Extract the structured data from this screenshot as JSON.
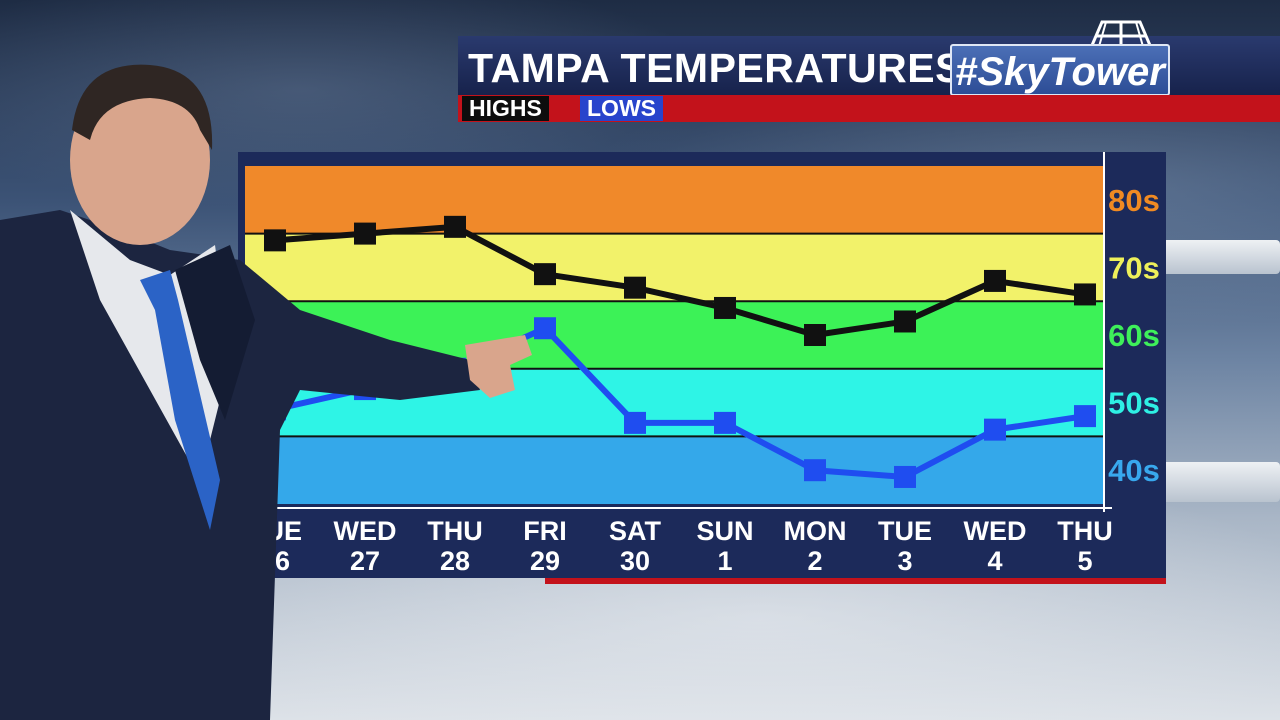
{
  "header": {
    "title": "TAMPA TEMPERATURES",
    "brand": "#SkyTower",
    "legend_highs": "HIGHS",
    "legend_lows": "LOWS"
  },
  "colors": {
    "highs": "#111111",
    "lows": "#1f4df0",
    "band_80s": "#f0892a",
    "band_70s": "#f2f26a",
    "band_60s": "#3cf257",
    "band_50s": "#2ef4e6",
    "band_40s": "#34a8ea",
    "accent_red": "#c3121b",
    "panel_navy": "#1c2a5a"
  },
  "chart_data": {
    "type": "line",
    "title": "TAMPA TEMPERATURES",
    "x": [
      {
        "day": "TUE",
        "date": "26"
      },
      {
        "day": "WED",
        "date": "27"
      },
      {
        "day": "THU",
        "date": "28"
      },
      {
        "day": "FRI",
        "date": "29"
      },
      {
        "day": "SAT",
        "date": "30"
      },
      {
        "day": "SUN",
        "date": "1"
      },
      {
        "day": "MON",
        "date": "2"
      },
      {
        "day": "TUE",
        "date": "3"
      },
      {
        "day": "WED",
        "date": "4"
      },
      {
        "day": "THU",
        "date": "5"
      }
    ],
    "series": [
      {
        "name": "HIGHS",
        "color": "#111111",
        "values": [
          74,
          75,
          76,
          69,
          67,
          64,
          60,
          62,
          68,
          66
        ]
      },
      {
        "name": "LOWS",
        "color": "#1f4df0",
        "values": [
          49,
          52,
          55,
          61,
          47,
          47,
          40,
          39,
          46,
          48
        ]
      }
    ],
    "bands": [
      {
        "label": "80s",
        "range": [
          85,
          75
        ],
        "color": "#f0892a",
        "text_color": "#f08a22"
      },
      {
        "label": "70s",
        "range": [
          75,
          65
        ],
        "color": "#f2f26a",
        "text_color": "#eef05a"
      },
      {
        "label": "60s",
        "range": [
          65,
          55
        ],
        "color": "#3cf257",
        "text_color": "#3ef05a"
      },
      {
        "label": "50s",
        "range": [
          55,
          45
        ],
        "color": "#2ef4e6",
        "text_color": "#2ef0e4"
      },
      {
        "label": "40s",
        "range": [
          45,
          35
        ],
        "color": "#34a8ea",
        "text_color": "#38a8ee"
      }
    ],
    "ylim": [
      35,
      85
    ],
    "legend_placement": "top-left"
  }
}
